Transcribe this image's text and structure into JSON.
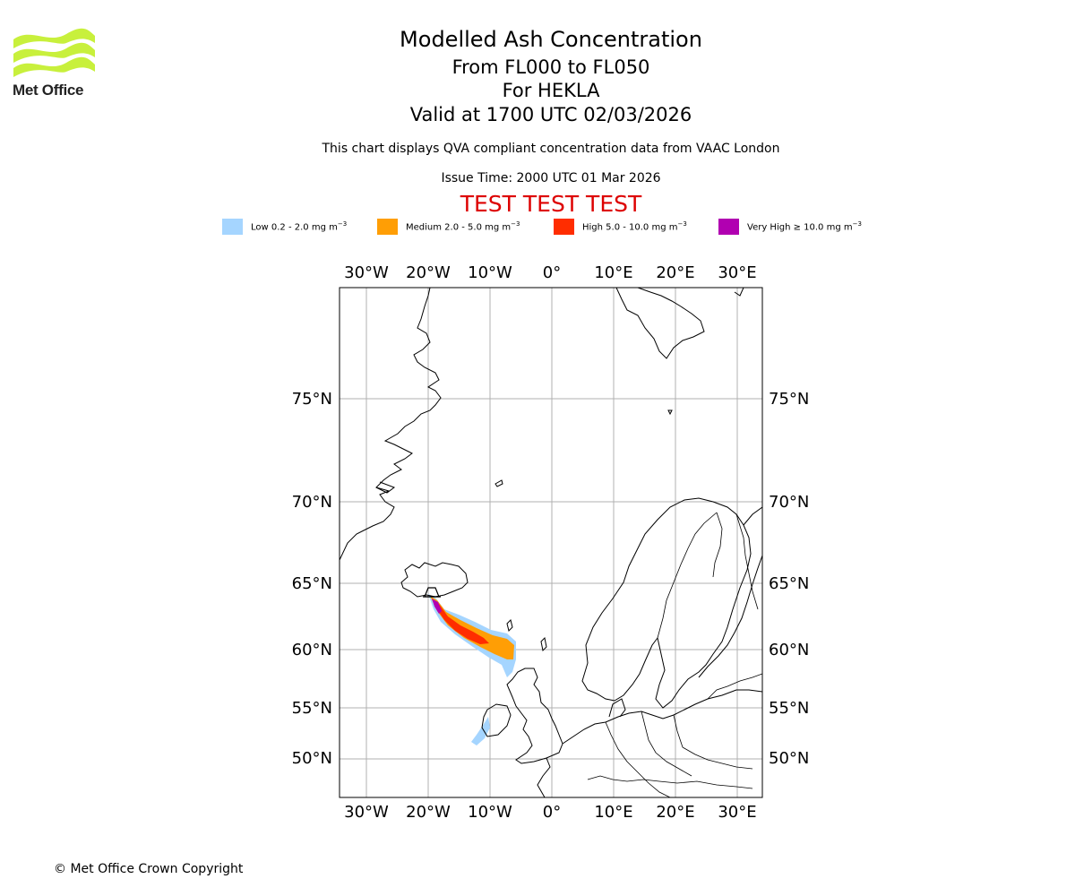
{
  "logo": {
    "text": "Met Office",
    "color": "#c8f03c"
  },
  "header": {
    "title": "Modelled Ash Concentration",
    "levels": "From FL000 to FL050",
    "volcano": "For HEKLA",
    "valid": "Valid at 1700 UTC 02/03/2026",
    "description": "This chart displays QVA compliant concentration data from VAAC London",
    "issue": "Issue Time: 2000 UTC 01 Mar 2026",
    "test_banner": "TEST TEST TEST"
  },
  "legend": [
    {
      "label": "Low 0.2 - 2.0 mg m",
      "unit_exp": "−3",
      "color": "#a5d5ff"
    },
    {
      "label": "Medium 2.0 - 5.0 mg m",
      "unit_exp": "−3",
      "color": "#ff9e05"
    },
    {
      "label": "High 5.0 - 10.0 mg m",
      "unit_exp": "−3",
      "color": "#ff2d00"
    },
    {
      "label": "Very High ≥ 10.0 mg m",
      "unit_exp": "−3",
      "color": "#b100b1"
    }
  ],
  "map": {
    "lon_ticks": [
      "30°W",
      "20°W",
      "10°W",
      "0°",
      "10°E",
      "20°E",
      "30°E"
    ],
    "lat_ticks": [
      "75°N",
      "70°N",
      "65°N",
      "60°N",
      "55°N",
      "50°N"
    ],
    "volcano_marker": "volcano-symbol"
  },
  "footer": {
    "copyright": "© Met Office Crown Copyright"
  }
}
